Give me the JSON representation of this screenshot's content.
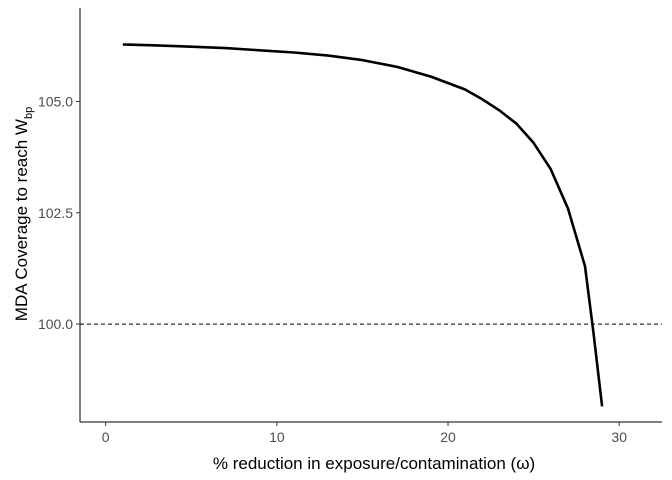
{
  "chart_data": {
    "type": "line",
    "title": "",
    "xlabel": "% reduction in exposure/contamination (ω)",
    "ylabel_main": "MDA Coverage to reach W",
    "ylabel_subscript": "bp",
    "xlim": [
      -1.5,
      32.5
    ],
    "ylim": [
      97.8,
      107.1
    ],
    "x_ticks": [
      0,
      10,
      20,
      30
    ],
    "y_ticks": [
      100.0,
      102.5,
      105.0
    ],
    "x_tick_labels": [
      "0",
      "10",
      "20",
      "30"
    ],
    "y_tick_labels": [
      "100.0",
      "102.5",
      "105.0"
    ],
    "grid": false,
    "legend": "none",
    "reference_line": {
      "y": 100.0,
      "style": "dashed"
    },
    "series": [
      {
        "x": [
          1,
          3,
          5,
          7,
          9,
          11,
          13,
          15,
          17,
          19,
          21,
          22,
          23,
          24,
          25,
          26,
          27,
          28,
          28.5,
          29
        ],
        "values": [
          106.28,
          106.26,
          106.23,
          106.2,
          106.15,
          106.1,
          106.03,
          105.93,
          105.78,
          105.56,
          105.27,
          105.05,
          104.8,
          104.5,
          104.07,
          103.48,
          102.6,
          101.3,
          99.8,
          98.15
        ]
      }
    ],
    "line_color": "#000000"
  }
}
